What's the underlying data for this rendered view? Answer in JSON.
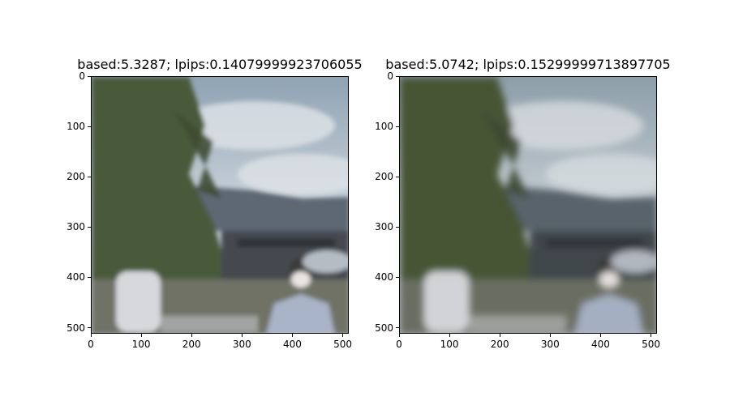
{
  "figure": {
    "panels": [
      {
        "title": "based:5.3287; lpips:0.14079999923706055",
        "image_desc": "blurred-outdoor-scene-trees-mountains-person"
      },
      {
        "title": "based:5.0742; lpips:0.15299999713897705",
        "image_desc": "blurred-outdoor-scene-trees-mountains-person"
      }
    ],
    "axis": {
      "x_ticks": [
        "0",
        "100",
        "200",
        "300",
        "400",
        "500"
      ],
      "y_ticks": [
        "0",
        "100",
        "200",
        "300",
        "400",
        "500"
      ]
    },
    "colors": {
      "sky": "#a9b8c6",
      "cloud": "#d3d8dd",
      "mountain": "#5d6873",
      "foliage": "#4a5a3a",
      "ground": "#6f7266",
      "shirt": "#a9b4c8"
    }
  }
}
